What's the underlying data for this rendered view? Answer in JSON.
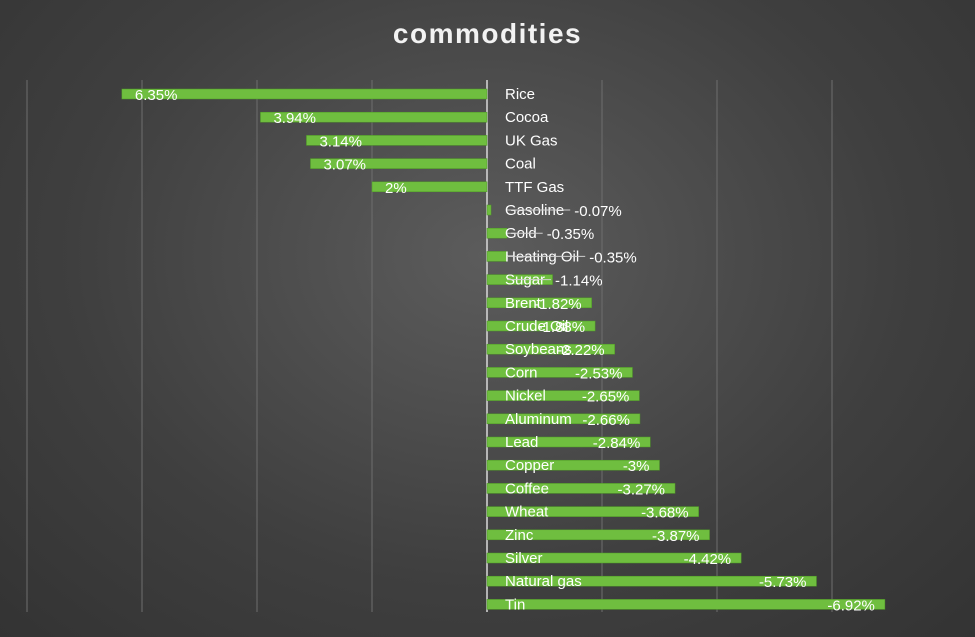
{
  "chart_data": {
    "type": "bar",
    "orientation": "horizontal",
    "title": "commodities",
    "xlabel": "",
    "ylabel": "",
    "xlim": [
      -7,
      8
    ],
    "grid": true,
    "legend": "none",
    "bar_color": "#6fbe3f",
    "bars": [
      {
        "category": "Rice",
        "value": 6.35,
        "label": "6.35%"
      },
      {
        "category": "Cocoa",
        "value": 3.94,
        "label": "3.94%"
      },
      {
        "category": "UK Gas",
        "value": 3.14,
        "label": "3.14%"
      },
      {
        "category": "Coal",
        "value": 3.07,
        "label": "3.07%"
      },
      {
        "category": "TTF Gas",
        "value": 2,
        "label": "2%"
      },
      {
        "category": "Gasoline",
        "value": -0.07,
        "label": "-0.07%"
      },
      {
        "category": "Gold",
        "value": -0.35,
        "label": "-0.35%"
      },
      {
        "category": "Heating Oil",
        "value": -0.35,
        "label": "-0.35%"
      },
      {
        "category": "Sugar",
        "value": -1.14,
        "label": "-1.14%"
      },
      {
        "category": "Brent",
        "value": -1.82,
        "label": "-1.82%"
      },
      {
        "category": "Crude Oil",
        "value": -1.88,
        "label": "-1.88%"
      },
      {
        "category": "Soybeans",
        "value": -2.22,
        "label": "-2.22%"
      },
      {
        "category": "Corn",
        "value": -2.53,
        "label": "-2.53%"
      },
      {
        "category": "Nickel",
        "value": -2.65,
        "label": "-2.65%"
      },
      {
        "category": "Aluminum",
        "value": -2.66,
        "label": "-2.66%"
      },
      {
        "category": "Lead",
        "value": -2.84,
        "label": "-2.84%"
      },
      {
        "category": "Copper",
        "value": -3,
        "label": "-3%"
      },
      {
        "category": "Coffee",
        "value": -3.27,
        "label": "-3.27%"
      },
      {
        "category": "Wheat",
        "value": -3.68,
        "label": "-3.68%"
      },
      {
        "category": "Zinc",
        "value": -3.87,
        "label": "-3.87%"
      },
      {
        "category": "Silver",
        "value": -4.42,
        "label": "-4.42%"
      },
      {
        "category": "Natural gas",
        "value": -5.73,
        "label": "-5.73%"
      },
      {
        "category": "Tin",
        "value": -6.92,
        "label": "-6.92%"
      }
    ]
  }
}
